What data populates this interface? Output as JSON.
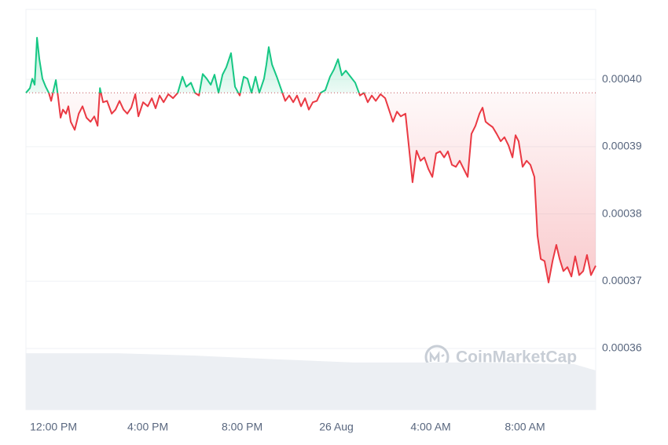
{
  "chart_data": {
    "type": "line",
    "x": [
      -1.17,
      -1.0,
      -0.9,
      -0.8,
      -0.7,
      -0.6,
      -0.47,
      -0.33,
      -0.2,
      -0.1,
      0,
      0.1,
      0.2,
      0.3,
      0.4,
      0.53,
      0.63,
      0.73,
      0.9,
      1.07,
      1.23,
      1.4,
      1.57,
      1.73,
      1.87,
      1.97,
      2.1,
      2.27,
      2.47,
      2.63,
      2.8,
      2.97,
      3.13,
      3.3,
      3.47,
      3.6,
      3.8,
      4.0,
      4.17,
      4.33,
      4.5,
      4.67,
      4.87,
      5.07,
      5.27,
      5.47,
      5.63,
      5.83,
      6.0,
      6.17,
      6.33,
      6.5,
      6.67,
      6.83,
      7.0,
      7.17,
      7.33,
      7.53,
      7.7,
      7.9,
      8.07,
      8.23,
      8.4,
      8.57,
      8.73,
      8.93,
      9.03,
      9.13,
      9.27,
      9.47,
      9.67,
      9.83,
      10.0,
      10.17,
      10.33,
      10.5,
      10.67,
      10.83,
      11.0,
      11.17,
      11.33,
      11.53,
      11.73,
      11.9,
      12.07,
      12.23,
      12.4,
      12.6,
      12.8,
      13.0,
      13.17,
      13.33,
      13.5,
      13.67,
      13.87,
      14.07,
      14.23,
      14.4,
      14.57,
      14.73,
      14.93,
      15.07,
      15.23,
      15.4,
      15.57,
      15.73,
      15.9,
      16.07,
      16.23,
      16.4,
      16.57,
      16.73,
      16.9,
      17.07,
      17.23,
      17.4,
      17.57,
      17.73,
      17.9,
      18.07,
      18.2,
      18.33,
      18.47,
      18.63,
      18.8,
      18.97,
      19.13,
      19.3,
      19.47,
      19.6,
      19.73,
      19.9,
      20.07,
      20.23,
      20.4,
      20.53,
      20.67,
      20.83,
      21.0,
      21.17,
      21.33,
      21.47,
      21.63,
      21.8,
      21.97,
      22.13,
      22.3,
      22.47,
      22.63,
      22.8,
      23.0
    ],
    "values": [
      0.000398,
      0.0003987,
      0.0004001,
      0.0003992,
      0.0004062,
      0.000403,
      0.0004001,
      0.0003989,
      0.000398,
      0.0003968,
      0.0003984,
      0.0003999,
      0.0003972,
      0.0003943,
      0.0003955,
      0.0003949,
      0.000396,
      0.0003937,
      0.0003925,
      0.0003949,
      0.000396,
      0.0003943,
      0.0003937,
      0.0003945,
      0.0003931,
      0.0003987,
      0.0003966,
      0.0003968,
      0.0003949,
      0.0003955,
      0.0003968,
      0.0003955,
      0.0003949,
      0.0003958,
      0.0003978,
      0.0003945,
      0.0003966,
      0.000396,
      0.0003972,
      0.0003957,
      0.0003976,
      0.0003966,
      0.0003978,
      0.0003972,
      0.000398,
      0.0004004,
      0.0003989,
      0.0003995,
      0.000398,
      0.0003976,
      0.0004008,
      0.0004001,
      0.0003992,
      0.0004007,
      0.000398,
      0.0004007,
      0.0004018,
      0.0004039,
      0.0003989,
      0.0003976,
      0.0004004,
      0.0004001,
      0.000398,
      0.0004004,
      0.000398,
      0.0004001,
      0.0004022,
      0.0004048,
      0.0004022,
      0.0004004,
      0.0003984,
      0.0003968,
      0.0003976,
      0.0003966,
      0.0003976,
      0.000396,
      0.0003972,
      0.0003955,
      0.0003966,
      0.0003968,
      0.000398,
      0.0003984,
      0.0004004,
      0.0004015,
      0.000403,
      0.0004006,
      0.0004013,
      0.0004004,
      0.0003995,
      0.0003976,
      0.000398,
      0.0003966,
      0.0003976,
      0.0003968,
      0.0003978,
      0.0003972,
      0.0003955,
      0.0003937,
      0.0003952,
      0.0003945,
      0.0003949,
      0.0003902,
      0.0003847,
      0.0003894,
      0.0003879,
      0.0003884,
      0.0003867,
      0.0003855,
      0.000389,
      0.0003893,
      0.0003884,
      0.0003893,
      0.0003873,
      0.000387,
      0.0003879,
      0.0003867,
      0.0003855,
      0.0003919,
      0.0003931,
      0.0003949,
      0.0003958,
      0.0003937,
      0.0003933,
      0.0003929,
      0.0003919,
      0.0003908,
      0.0003914,
      0.0003902,
      0.0003884,
      0.0003917,
      0.0003908,
      0.000387,
      0.0003879,
      0.0003873,
      0.0003855,
      0.0003768,
      0.0003733,
      0.000373,
      0.0003698,
      0.000373,
      0.0003754,
      0.0003733,
      0.0003715,
      0.0003721,
      0.0003707,
      0.0003737,
      0.0003709,
      0.0003715,
      0.0003739,
      0.0003709,
      0.0003723
    ],
    "baseline": 0.000398,
    "colors": {
      "above": "#16c784",
      "below": "#ea3943"
    },
    "volume": {
      "x": [
        -1.17,
        2.73,
        6.07,
        9.4,
        12.73,
        17.73,
        22.07,
        23.0
      ],
      "values": [
        14.1,
        14.1,
        13.5,
        12.6,
        11.8,
        11.8,
        11.4,
        9.8
      ],
      "color": "#eceff3",
      "axis": "y2"
    },
    "xlim": [
      -1.17,
      23.0
    ],
    "ylim": [
      0.0003509,
      0.0004104
    ],
    "y2lim": [
      0,
      100
    ],
    "xticks": [
      {
        "value": 0,
        "label": "12:00 PM"
      },
      {
        "value": 4,
        "label": "4:00 PM"
      },
      {
        "value": 8,
        "label": "8:00 PM"
      },
      {
        "value": 12,
        "label": "26 Aug"
      },
      {
        "value": 16,
        "label": "4:00 AM"
      },
      {
        "value": 20,
        "label": "8:00 AM"
      }
    ],
    "yticks": [
      {
        "value": 0.0004,
        "label": "0.00040"
      },
      {
        "value": 0.00039,
        "label": "0.00039"
      },
      {
        "value": 0.00038,
        "label": "0.00038"
      },
      {
        "value": 0.00037,
        "label": "0.00037"
      },
      {
        "value": 0.00036,
        "label": "0.00036"
      }
    ],
    "grid": true,
    "watermark": "CoinMarketCap"
  }
}
